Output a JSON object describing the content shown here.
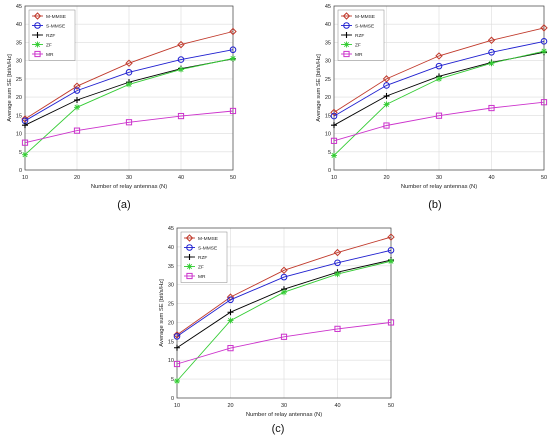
{
  "chart_data": [
    {
      "panel_label": "(a)",
      "type": "line",
      "xlabel": "Number of relay antennas (N)",
      "ylabel": "Average sum SE [bit/s/Hz]",
      "xlim": [
        10,
        50
      ],
      "ylim": [
        0,
        45
      ],
      "xticks": [
        "10",
        "20",
        "30",
        "40",
        "50"
      ],
      "yticks": [
        "0",
        "5",
        "10",
        "15",
        "20",
        "25",
        "30",
        "35",
        "40",
        "45"
      ],
      "grid": true,
      "legend_position": "top-left",
      "x": [
        10,
        20,
        30,
        40,
        50
      ],
      "series": [
        {
          "name": "M-MMSE",
          "color": "#c0392b",
          "marker": "diamond",
          "values": [
            14.0,
            23.0,
            29.3,
            34.4,
            38.0
          ]
        },
        {
          "name": "S-MMSE",
          "color": "#2020d0",
          "marker": "circle",
          "values": [
            13.5,
            21.8,
            26.8,
            30.3,
            33.0
          ]
        },
        {
          "name": "RZF",
          "color": "#000000",
          "marker": "plus",
          "values": [
            12.3,
            19.2,
            24.1,
            27.8,
            30.5
          ]
        },
        {
          "name": "ZF",
          "color": "#33cc33",
          "marker": "star",
          "values": [
            4.2,
            17.2,
            23.5,
            27.6,
            30.6
          ]
        },
        {
          "name": "MR",
          "color": "#cc33cc",
          "marker": "square",
          "values": [
            7.5,
            10.8,
            13.1,
            14.8,
            16.2
          ]
        }
      ]
    },
    {
      "panel_label": "(b)",
      "type": "line",
      "xlabel": "Number of relay antennas (N)",
      "ylabel": "Average sum SE [bit/s/Hz]",
      "xlim": [
        10,
        50
      ],
      "ylim": [
        0,
        45
      ],
      "xticks": [
        "10",
        "20",
        "30",
        "40",
        "50"
      ],
      "yticks": [
        "0",
        "5",
        "10",
        "15",
        "20",
        "25",
        "30",
        "35",
        "40",
        "45"
      ],
      "grid": true,
      "legend_position": "top-left",
      "x": [
        10,
        20,
        30,
        40,
        50
      ],
      "series": [
        {
          "name": "M-MMSE",
          "color": "#c0392b",
          "marker": "diamond",
          "values": [
            15.8,
            25.0,
            31.3,
            35.6,
            39.0
          ]
        },
        {
          "name": "S-MMSE",
          "color": "#2020d0",
          "marker": "circle",
          "values": [
            14.8,
            23.2,
            28.5,
            32.3,
            35.3
          ]
        },
        {
          "name": "RZF",
          "color": "#000000",
          "marker": "plus",
          "values": [
            12.3,
            20.3,
            25.7,
            29.5,
            32.3
          ]
        },
        {
          "name": "ZF",
          "color": "#33cc33",
          "marker": "star",
          "values": [
            4.0,
            18.0,
            25.0,
            29.3,
            32.6
          ]
        },
        {
          "name": "MR",
          "color": "#cc33cc",
          "marker": "square",
          "values": [
            8.0,
            12.2,
            14.9,
            17.0,
            18.6
          ]
        }
      ]
    },
    {
      "panel_label": "(c)",
      "type": "line",
      "xlabel": "Number of relay antennas (N)",
      "ylabel": "Average sum SE [bit/s/Hz]",
      "xlim": [
        10,
        50
      ],
      "ylim": [
        0,
        45
      ],
      "xticks": [
        "10",
        "20",
        "30",
        "40",
        "50"
      ],
      "yticks": [
        "0",
        "5",
        "10",
        "15",
        "20",
        "25",
        "30",
        "35",
        "40",
        "45"
      ],
      "grid": true,
      "legend_position": "top-left",
      "x": [
        10,
        20,
        30,
        40,
        50
      ],
      "series": [
        {
          "name": "M-MMSE",
          "color": "#c0392b",
          "marker": "diamond",
          "values": [
            16.7,
            26.7,
            33.8,
            38.5,
            42.6
          ]
        },
        {
          "name": "S-MMSE",
          "color": "#2020d0",
          "marker": "circle",
          "values": [
            16.3,
            26.0,
            32.0,
            35.8,
            39.1
          ]
        },
        {
          "name": "RZF",
          "color": "#000000",
          "marker": "plus",
          "values": [
            13.3,
            22.7,
            28.8,
            33.3,
            36.5
          ]
        },
        {
          "name": "ZF",
          "color": "#33cc33",
          "marker": "star",
          "values": [
            4.5,
            20.5,
            28.0,
            32.8,
            36.2
          ]
        },
        {
          "name": "MR",
          "color": "#cc33cc",
          "marker": "square",
          "values": [
            9.0,
            13.2,
            16.2,
            18.3,
            20.0
          ]
        }
      ]
    }
  ]
}
